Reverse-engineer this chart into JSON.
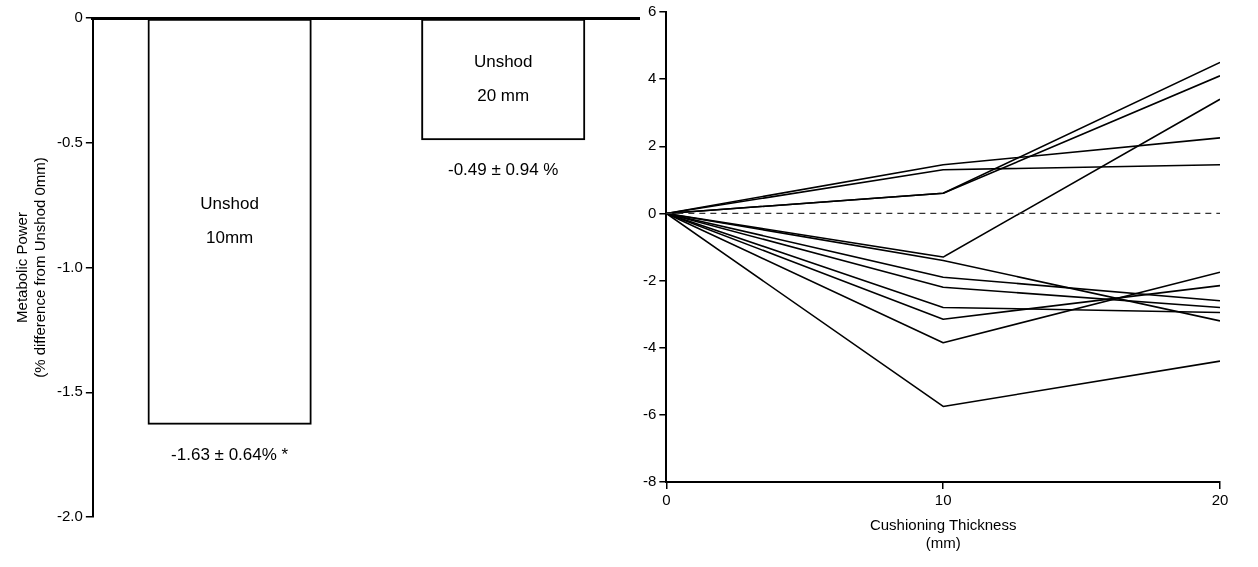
{
  "chart_data": [
    {
      "type": "bar",
      "ylabel": "Metabolic Power\n(% difference from Unshod 0mm)",
      "categories": [
        "Unshod\n10mm",
        "Unshod\n20 mm"
      ],
      "values": [
        -1.63,
        -0.49
      ],
      "color": "#000000",
      "value_labels": [
        "-1.63 ± 0.64% *",
        "-0.49 ± 0.94 %"
      ],
      "ylim": [
        -2,
        0
      ],
      "yticks": [
        {
          "value": -2,
          "label": "-2.0"
        },
        -1.5,
        {
          "value": -1,
          "label": "-1.0"
        },
        -0.5,
        0
      ]
    },
    {
      "type": "line",
      "xlabel": "Cushioning Thickness\n(mm)",
      "x": [
        0,
        10,
        20
      ],
      "marker": "none",
      "line_style": "solid",
      "series": [
        {
          "color": "#000000",
          "values": [
            0,
            1.45,
            2.25
          ]
        },
        {
          "color": "#000000",
          "values": [
            0,
            1.3,
            1.45
          ]
        },
        {
          "color": "#000000",
          "values": [
            0,
            0.6,
            4.5
          ]
        },
        {
          "color": "#000000",
          "values": [
            0,
            0.6,
            4.1
          ]
        },
        {
          "color": "#000000",
          "values": [
            0,
            -1.3,
            3.4
          ]
        },
        {
          "color": "#000000",
          "values": [
            0,
            -1.4,
            -3.2
          ]
        },
        {
          "color": "#000000",
          "values": [
            0,
            -1.9,
            -2.6
          ]
        },
        {
          "color": "#000000",
          "values": [
            0,
            -2.2,
            -2.8
          ]
        },
        {
          "color": "#000000",
          "values": [
            0,
            -2.8,
            -2.95
          ]
        },
        {
          "color": "#000000",
          "values": [
            0,
            -3.15,
            -2.15
          ]
        },
        {
          "color": "#000000",
          "values": [
            0,
            -3.85,
            -1.75
          ]
        },
        {
          "color": "#000000",
          "values": [
            0,
            -5.75,
            -4.4
          ]
        }
      ],
      "xlim": [
        0,
        20
      ],
      "xticks": [
        0,
        10,
        20
      ],
      "ylim": [
        -8,
        6
      ],
      "yticks": [
        -8,
        -6,
        -4,
        -2,
        0,
        2,
        4,
        6
      ],
      "ref_lines": [
        {
          "axis": "y",
          "value": 0,
          "line_style": "dashed",
          "color": "#333333"
        }
      ]
    }
  ]
}
